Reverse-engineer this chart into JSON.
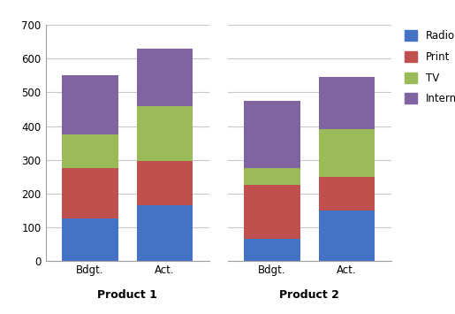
{
  "groups": [
    "Product 1",
    "Product 2"
  ],
  "bars": [
    "Bdgt.",
    "Act."
  ],
  "segments": [
    "Radio",
    "Print",
    "TV",
    "Internet"
  ],
  "colors": [
    "#4472C4",
    "#C0504D",
    "#9BBB59",
    "#8064A2"
  ],
  "values": {
    "Product 1": {
      "Bdgt.": [
        125,
        150,
        100,
        175
      ],
      "Act.": [
        165,
        130,
        165,
        170
      ]
    },
    "Product 2": {
      "Bdgt.": [
        65,
        160,
        50,
        200
      ],
      "Act.": [
        150,
        100,
        140,
        155
      ]
    }
  },
  "ylim": [
    0,
    700
  ],
  "yticks": [
    0,
    100,
    200,
    300,
    400,
    500,
    600,
    700
  ],
  "background_color": "#FFFFFF",
  "grid_color": "#C8C8C8",
  "legend_labels": [
    "Radio",
    "Print",
    "TV",
    "Internet"
  ],
  "bar_width": 0.75,
  "bar_positions": [
    1,
    2
  ],
  "xlim": [
    0.4,
    2.6
  ]
}
